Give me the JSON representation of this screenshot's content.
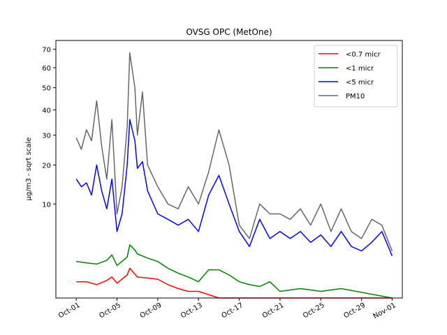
{
  "chart_data": {
    "type": "line",
    "title": "OVSG OPC (MetOne)",
    "xlabel": "",
    "ylabel": "µg/m3 - sqrt scale",
    "y_scale": "sqrt",
    "ylim": [
      0,
      75
    ],
    "x_range": [
      "2023-09-29",
      "2023-11-02"
    ],
    "y_ticks": [
      10,
      20,
      30,
      40,
      50,
      60,
      70
    ],
    "x_ticks": [
      "2023-10-01",
      "2023-10-05",
      "2023-10-09",
      "2023-10-13",
      "2023-10-17",
      "2023-10-21",
      "2023-10-25",
      "2023-10-29",
      "2023-11-01"
    ],
    "x_tick_labels": [
      "Oct-01",
      "Oct-05",
      "Oct-09",
      "Oct-13",
      "Oct-17",
      "Oct-21",
      "Oct-25",
      "Oct-29",
      "Nov-01"
    ],
    "grid": false,
    "legend_position": "top-right",
    "series": [
      {
        "name": "<0.7 micr",
        "color": "#ff0000",
        "x": [
          "2023-10-01",
          "2023-10-02",
          "2023-10-03",
          "2023-10-04",
          "2023-10-04T12:00",
          "2023-10-05",
          "2023-10-06",
          "2023-10-06T06:00",
          "2023-10-07",
          "2023-10-08",
          "2023-10-09",
          "2023-10-10",
          "2023-10-11",
          "2023-10-12",
          "2023-10-13",
          "2023-10-15",
          "2023-11-01"
        ],
        "values": [
          0.3,
          0.3,
          0.2,
          0.35,
          0.5,
          0.25,
          0.6,
          1.0,
          0.5,
          0.45,
          0.4,
          0.2,
          0.1,
          0.05,
          0.05,
          0,
          0
        ]
      },
      {
        "name": "<1 micr",
        "color": "#008000",
        "x": [
          "2023-10-01",
          "2023-10-02",
          "2023-10-03",
          "2023-10-04",
          "2023-10-04T12:00",
          "2023-10-05",
          "2023-10-06",
          "2023-10-06T06:00",
          "2023-10-06T18:00",
          "2023-10-07",
          "2023-10-08",
          "2023-10-09",
          "2023-10-10",
          "2023-10-11",
          "2023-10-12",
          "2023-10-13",
          "2023-10-14",
          "2023-10-15",
          "2023-10-16",
          "2023-10-17",
          "2023-10-18",
          "2023-10-19",
          "2023-10-20",
          "2023-10-21",
          "2023-10-23",
          "2023-10-25",
          "2023-10-27",
          "2023-11-01"
        ],
        "values": [
          1.5,
          1.4,
          1.3,
          1.6,
          2.1,
          1.2,
          1.9,
          3.2,
          2.6,
          2.2,
          1.8,
          1.5,
          1.0,
          0.7,
          0.5,
          0.3,
          0.9,
          0.9,
          0.6,
          0.3,
          0.2,
          0.15,
          0.3,
          0.05,
          0.1,
          0.05,
          0.1,
          0
        ]
      },
      {
        "name": "<5 micr",
        "color": "#0000ff",
        "x": [
          "2023-10-01",
          "2023-10-01T12:00",
          "2023-10-02",
          "2023-10-02T12:00",
          "2023-10-03",
          "2023-10-03T12:00",
          "2023-10-04",
          "2023-10-04T12:00",
          "2023-10-05",
          "2023-10-05T12:00",
          "2023-10-06",
          "2023-10-06T06:00",
          "2023-10-06T18:00",
          "2023-10-07",
          "2023-10-07T12:00",
          "2023-10-08",
          "2023-10-09",
          "2023-10-10",
          "2023-10-11",
          "2023-10-12",
          "2023-10-13",
          "2023-10-14",
          "2023-10-15",
          "2023-10-16",
          "2023-10-17",
          "2023-10-18",
          "2023-10-19",
          "2023-10-20",
          "2023-10-21",
          "2023-10-22",
          "2023-10-23",
          "2023-10-24",
          "2023-10-25",
          "2023-10-26",
          "2023-10-27",
          "2023-10-28",
          "2023-10-29",
          "2023-10-30",
          "2023-10-31",
          "2023-11-01"
        ],
        "values": [
          16,
          14,
          15,
          12,
          20,
          13,
          9,
          16,
          5,
          8,
          20,
          36,
          28,
          19,
          21,
          13,
          8,
          7,
          6,
          7,
          5,
          12,
          17,
          10,
          5,
          3,
          7,
          4,
          5,
          4,
          5,
          3.5,
          4.5,
          3,
          5,
          3,
          2.5,
          3.5,
          5,
          2
        ]
      },
      {
        "name": "PM10",
        "color": "#666666",
        "x": [
          "2023-10-01",
          "2023-10-01T12:00",
          "2023-10-02",
          "2023-10-02T12:00",
          "2023-10-03",
          "2023-10-03T12:00",
          "2023-10-04",
          "2023-10-04T12:00",
          "2023-10-05",
          "2023-10-05T12:00",
          "2023-10-06",
          "2023-10-06T06:00",
          "2023-10-06T18:00",
          "2023-10-07",
          "2023-10-07T12:00",
          "2023-10-08",
          "2023-10-09",
          "2023-10-10",
          "2023-10-11",
          "2023-10-12",
          "2023-10-13",
          "2023-10-14",
          "2023-10-15",
          "2023-10-16",
          "2023-10-17",
          "2023-10-18",
          "2023-10-19",
          "2023-10-20",
          "2023-10-21",
          "2023-10-22",
          "2023-10-23",
          "2023-10-24",
          "2023-10-25",
          "2023-10-26",
          "2023-10-27",
          "2023-10-28",
          "2023-10-29",
          "2023-10-30",
          "2023-10-31",
          "2023-11-01"
        ],
        "values": [
          29,
          25,
          32,
          28,
          44,
          26,
          16,
          36,
          8,
          14,
          33,
          68,
          50,
          30,
          48,
          20,
          14,
          10,
          9,
          14,
          10,
          18,
          32,
          20,
          6,
          4,
          10,
          8,
          8,
          7,
          9,
          6,
          10,
          5,
          9,
          5,
          4,
          7,
          6,
          2.5
        ]
      }
    ]
  }
}
